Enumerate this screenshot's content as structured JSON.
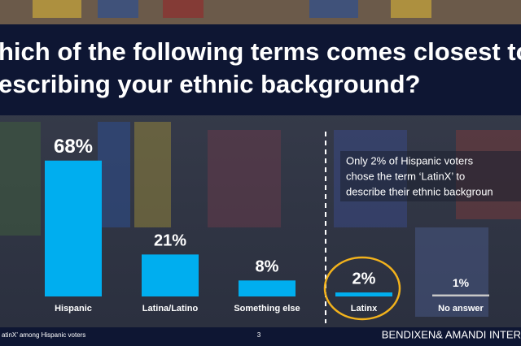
{
  "chart_data": {
    "type": "bar",
    "title_lines": [
      "hich of the following terms comes closest to",
      "escribing your ethnic background?"
    ],
    "categories": [
      "Hispanic",
      "Latina/Latino",
      "Something else",
      "Latinx",
      "No answer"
    ],
    "values": [
      68,
      21,
      8,
      2,
      1
    ],
    "value_labels": [
      "68%",
      "21%",
      "8%",
      "2%",
      "1%"
    ],
    "colors": [
      "#00aeef",
      "#00aeef",
      "#00aeef",
      "#00aeef",
      "#c8c8c8"
    ],
    "annotation_lines": [
      "Only 2% of Hispanic voters",
      "chose the term ‘LatinX’ to",
      "describe their ethnic backgroun"
    ],
    "footer": {
      "left": "atinX’ among Hispanic voters",
      "page": "3",
      "brand": "BENDIXEN& AMANDI INTER"
    }
  }
}
